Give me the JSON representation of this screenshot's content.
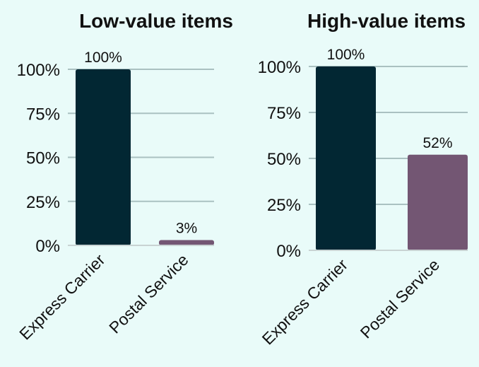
{
  "chart_data": [
    {
      "type": "bar",
      "title": "Low-value items",
      "categories": [
        "Express Carrier",
        "Postal Service"
      ],
      "values": [
        100,
        3
      ],
      "value_labels": [
        "100%",
        "3%"
      ],
      "ylim": [
        0,
        100
      ],
      "yticks": [
        "0%",
        "25%",
        "50%",
        "75%",
        "100%"
      ],
      "grid": true
    },
    {
      "type": "bar",
      "title": "High-value items",
      "categories": [
        "Express Carrier",
        "Postal Service"
      ],
      "values": [
        100,
        52
      ],
      "value_labels": [
        "100%",
        "52%"
      ],
      "ylim": [
        0,
        100
      ],
      "yticks": [
        "0%",
        "25%",
        "50%",
        "75%",
        "100%"
      ],
      "grid": true
    }
  ],
  "colors": {
    "bar_0": "#022733",
    "bar_1": "#735673",
    "background": "#e9fbf9"
  }
}
